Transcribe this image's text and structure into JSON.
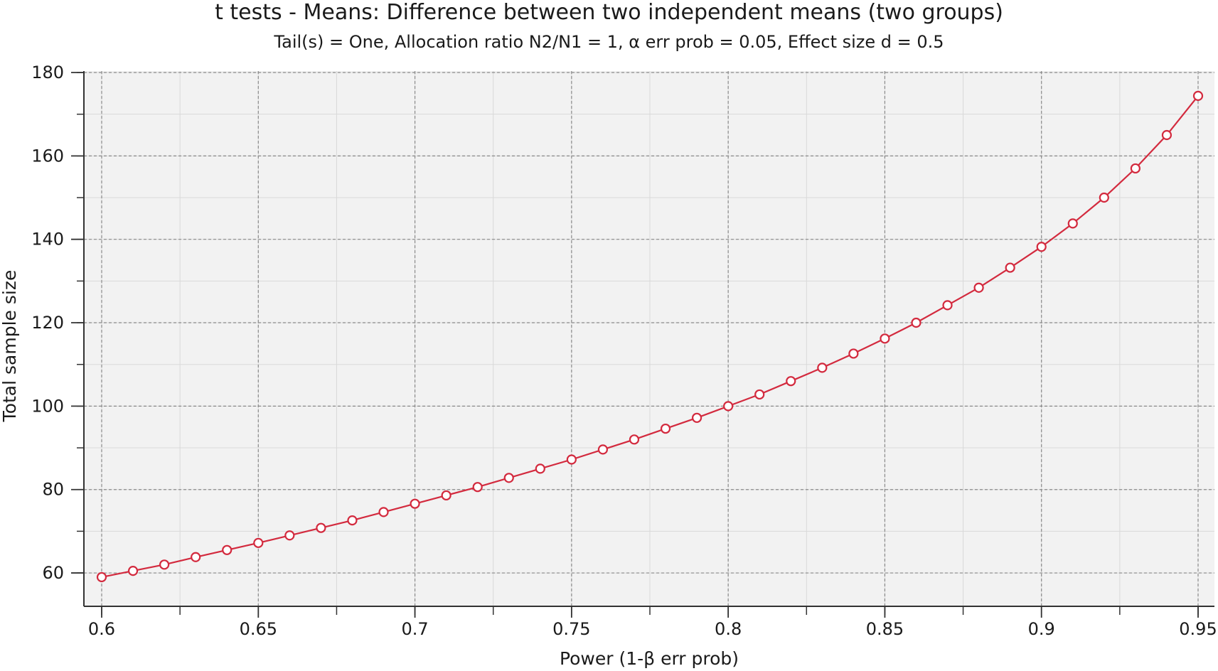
{
  "chart_data": {
    "type": "line",
    "title": "t tests - Means: Difference between two independent means (two groups)",
    "subtitle": "Tail(s) = One, Allocation ratio N2/N1 = 1, α err prob = 0.05, Effect size d = 0.5",
    "xlabel": "Power (1-β err prob)",
    "ylabel": "Total sample size",
    "xlim": [
      0.6,
      0.95
    ],
    "ylim": [
      52,
      180
    ],
    "x_ticks": [
      0.6,
      0.65,
      0.7,
      0.75,
      0.8,
      0.85,
      0.9,
      0.95
    ],
    "x_tick_labels": [
      "0.6",
      "0.65",
      "0.7",
      "0.75",
      "0.8",
      "0.85",
      "0.9",
      "0.95"
    ],
    "y_ticks": [
      60,
      80,
      100,
      120,
      140,
      160,
      180
    ],
    "y_tick_labels": [
      "60",
      "80",
      "100",
      "120",
      "140",
      "160",
      "180"
    ],
    "grid": true,
    "series": [
      {
        "color": "#d32a3e",
        "marker": "open-circle",
        "x": [
          0.6,
          0.61,
          0.62,
          0.63,
          0.64,
          0.65,
          0.66,
          0.67,
          0.68,
          0.69,
          0.7,
          0.71,
          0.72,
          0.73,
          0.74,
          0.75,
          0.76,
          0.77,
          0.78,
          0.79,
          0.8,
          0.81,
          0.82,
          0.83,
          0.84,
          0.85,
          0.86,
          0.87,
          0.88,
          0.89,
          0.9,
          0.91,
          0.92,
          0.93,
          0.94,
          0.95
        ],
        "y": [
          59,
          60.5,
          62,
          63.8,
          65.5,
          67.2,
          69,
          70.8,
          72.6,
          74.6,
          76.6,
          78.6,
          80.6,
          82.8,
          85,
          87.2,
          89.6,
          92,
          94.6,
          97.2,
          100,
          102.8,
          106,
          109.2,
          112.6,
          116.2,
          120,
          124.2,
          128.4,
          133.2,
          138.2,
          143.8,
          150,
          157,
          165,
          174.4
        ]
      }
    ]
  }
}
